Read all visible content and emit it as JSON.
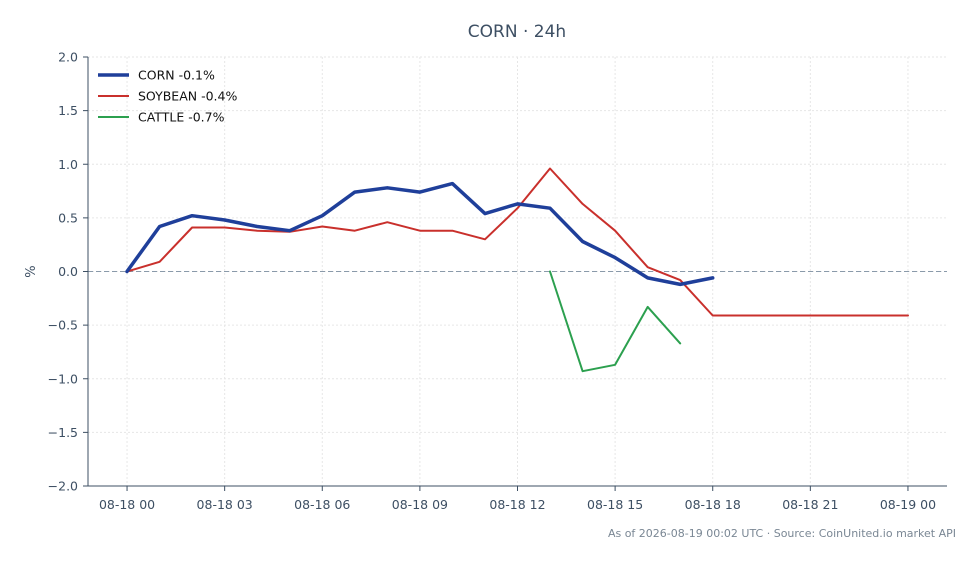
{
  "chart_data": {
    "type": "line",
    "title": "CORN · 24h",
    "xlabel": "",
    "ylabel": "%",
    "x_ticks": [
      "08-18 00",
      "08-18 03",
      "08-18 06",
      "08-18 09",
      "08-18 12",
      "08-18 15",
      "08-18 18",
      "08-18 21",
      "08-19 00"
    ],
    "xlim_hours": [
      -1.2,
      25.2
    ],
    "ylim": [
      -2.0,
      2.0
    ],
    "y_ticks": [
      2.0,
      1.5,
      1.0,
      0.5,
      0.0,
      -0.5,
      -1.0,
      -1.5,
      -2.0
    ],
    "y_tick_labels": [
      "2.0",
      "1.5",
      "1.0",
      "0.5",
      "0.0",
      "−0.5",
      "−1.0",
      "−1.5",
      "−2.0"
    ],
    "grid": true,
    "zero_line": true,
    "legend_position": "top-left",
    "series": [
      {
        "name": "CORN -0.1%",
        "color": "#1f3f9a",
        "width": 3.5,
        "x": [
          0,
          1,
          2,
          3,
          4,
          5,
          6,
          7,
          8,
          9,
          10,
          11,
          12,
          13,
          14,
          15,
          16,
          17,
          18
        ],
        "y": [
          0.0,
          0.42,
          0.52,
          0.48,
          0.42,
          0.38,
          0.52,
          0.74,
          0.78,
          0.74,
          0.82,
          0.54,
          0.63,
          0.59,
          0.28,
          0.13,
          -0.06,
          -0.12,
          -0.06
        ]
      },
      {
        "name": "SOYBEAN -0.4%",
        "color": "#c9302c",
        "width": 2,
        "x": [
          0,
          1,
          2,
          3,
          4,
          5,
          6,
          7,
          8,
          9,
          10,
          11,
          12,
          13,
          14,
          15,
          16,
          17,
          18,
          19,
          20,
          21,
          22,
          23,
          24
        ],
        "y": [
          0.0,
          0.09,
          0.41,
          0.41,
          0.38,
          0.37,
          0.42,
          0.38,
          0.46,
          0.38,
          0.38,
          0.3,
          0.59,
          0.96,
          0.63,
          0.38,
          0.04,
          -0.08,
          -0.41,
          -0.41,
          -0.41,
          -0.41,
          -0.41,
          -0.41,
          -0.41
        ]
      },
      {
        "name": "CATTLE -0.7%",
        "color": "#2ca04f",
        "width": 2,
        "x": [
          13,
          14,
          15,
          16,
          17
        ],
        "y": [
          0.0,
          -0.93,
          -0.87,
          -0.33,
          -0.67
        ]
      }
    ]
  },
  "footer": "As of 2026-08-19 00:02 UTC · Source: CoinUnited.io market API"
}
